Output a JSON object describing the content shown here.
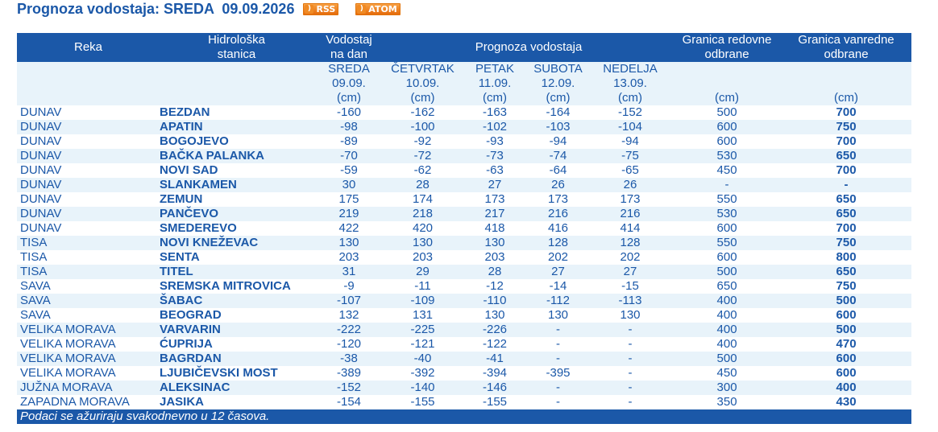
{
  "page": {
    "title": "Prognoza vodostaja: SREDA  09.09.2026",
    "rss_label": "RSS",
    "atom_label": "ATOM"
  },
  "table": {
    "headers": {
      "reka": "Reka",
      "stanica": "Hidrološka\nstanica",
      "vodostaj": "Vodostaj\nna dan",
      "prognoza": "Prognoza vodostaja",
      "redovne": "Granica redovne\nodbrane",
      "vanredne": "Granica vanredne\nodbrane"
    },
    "days": [
      {
        "name": "SREDA",
        "date": "09.09.",
        "unit": "(cm)"
      },
      {
        "name": "ČETVRTAK",
        "date": "10.09.",
        "unit": "(cm)"
      },
      {
        "name": "PETAK",
        "date": "11.09.",
        "unit": "(cm)"
      },
      {
        "name": "SUBOTA",
        "date": "12.09.",
        "unit": "(cm)"
      },
      {
        "name": "NEDELJA",
        "date": "13.09.",
        "unit": "(cm)"
      }
    ],
    "unit_redovne": "(cm)",
    "unit_vanredne": "(cm)",
    "rows": [
      {
        "reka": "DUNAV",
        "stanica": "BEZDAN",
        "v": [
          "-160",
          "-162",
          "-163",
          "-164",
          "-152"
        ],
        "red": "500",
        "van": "700"
      },
      {
        "reka": "DUNAV",
        "stanica": "APATIN",
        "v": [
          "-98",
          "-100",
          "-102",
          "-103",
          "-104"
        ],
        "red": "600",
        "van": "750"
      },
      {
        "reka": "DUNAV",
        "stanica": "BOGOJEVO",
        "v": [
          "-89",
          "-92",
          "-93",
          "-94",
          "-94"
        ],
        "red": "600",
        "van": "700"
      },
      {
        "reka": "DUNAV",
        "stanica": "BAČKA PALANKA",
        "v": [
          "-70",
          "-72",
          "-73",
          "-74",
          "-75"
        ],
        "red": "530",
        "van": "650"
      },
      {
        "reka": "DUNAV",
        "stanica": "NOVI SAD",
        "v": [
          "-59",
          "-62",
          "-63",
          "-64",
          "-65"
        ],
        "red": "450",
        "van": "700"
      },
      {
        "reka": "DUNAV",
        "stanica": "SLANKAMEN",
        "v": [
          "30",
          "28",
          "27",
          "26",
          "26"
        ],
        "red": "-",
        "van": "-"
      },
      {
        "reka": "DUNAV",
        "stanica": "ZEMUN",
        "v": [
          "175",
          "174",
          "173",
          "173",
          "173"
        ],
        "red": "550",
        "van": "650"
      },
      {
        "reka": "DUNAV",
        "stanica": "PANČEVO",
        "v": [
          "219",
          "218",
          "217",
          "216",
          "216"
        ],
        "red": "530",
        "van": "650"
      },
      {
        "reka": "DUNAV",
        "stanica": "SMEDEREVO",
        "v": [
          "422",
          "420",
          "418",
          "416",
          "414"
        ],
        "red": "600",
        "van": "700"
      },
      {
        "reka": "TISA",
        "stanica": "NOVI KNEŽEVAC",
        "v": [
          "130",
          "130",
          "130",
          "128",
          "128"
        ],
        "red": "550",
        "van": "750"
      },
      {
        "reka": "TISA",
        "stanica": "SENTA",
        "v": [
          "203",
          "203",
          "203",
          "202",
          "202"
        ],
        "red": "600",
        "van": "800"
      },
      {
        "reka": "TISA",
        "stanica": "TITEL",
        "v": [
          "31",
          "29",
          "28",
          "27",
          "27"
        ],
        "red": "500",
        "van": "650"
      },
      {
        "reka": "SAVA",
        "stanica": "SREMSKA MITROVICA",
        "v": [
          "-9",
          "-11",
          "-12",
          "-14",
          "-15"
        ],
        "red": "650",
        "van": "750"
      },
      {
        "reka": "SAVA",
        "stanica": "ŠABAC",
        "v": [
          "-107",
          "-109",
          "-110",
          "-112",
          "-113"
        ],
        "red": "400",
        "van": "500"
      },
      {
        "reka": "SAVA",
        "stanica": "BEOGRAD",
        "v": [
          "132",
          "131",
          "130",
          "130",
          "130"
        ],
        "red": "400",
        "van": "600"
      },
      {
        "reka": "VELIKA MORAVA",
        "stanica": "VARVARIN",
        "v": [
          "-222",
          "-225",
          "-226",
          "-",
          "-"
        ],
        "red": "400",
        "van": "500"
      },
      {
        "reka": "VELIKA MORAVA",
        "stanica": "ĆUPRIJA",
        "v": [
          "-120",
          "-121",
          "-122",
          "-",
          "-"
        ],
        "red": "400",
        "van": "470"
      },
      {
        "reka": "VELIKA MORAVA",
        "stanica": "BAGRDAN",
        "v": [
          "-38",
          "-40",
          "-41",
          "-",
          "-"
        ],
        "red": "500",
        "van": "600"
      },
      {
        "reka": "VELIKA MORAVA",
        "stanica": "LJUBIČEVSKI MOST",
        "v": [
          "-389",
          "-392",
          "-394",
          "-395",
          "-"
        ],
        "red": "450",
        "van": "600"
      },
      {
        "reka": "JUŽNA MORAVA",
        "stanica": "ALEKSINAC",
        "v": [
          "-152",
          "-140",
          "-146",
          "-",
          "-"
        ],
        "red": "300",
        "van": "400"
      },
      {
        "reka": "ZAPADNA MORAVA",
        "stanica": "JASIKA",
        "v": [
          "-154",
          "-155",
          "-155",
          "-",
          "-"
        ],
        "red": "350",
        "van": "430"
      }
    ]
  },
  "footer": {
    "note": "Podaci se ažuriraju svakodnevno u 12 časova."
  },
  "colors": {
    "brand_blue": "#1b58a8",
    "row_stripe": "#e8f3fa",
    "feed_orange": "#f08a24"
  },
  "icons": [
    "rss-feed-icon",
    "atom-feed-icon"
  ]
}
